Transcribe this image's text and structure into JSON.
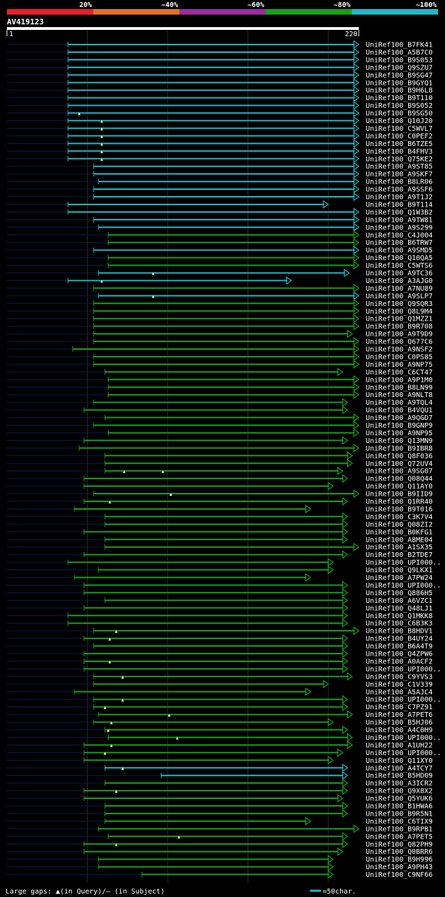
{
  "chart_data": {
    "type": "alignment-overview",
    "query": "AV419123",
    "query_start": "1",
    "query_end": "220",
    "query_length": 220,
    "identity_legend": [
      {
        "label": "20%",
        "color": "#e8202a"
      },
      {
        "label": "~40%",
        "color": "#e07020"
      },
      {
        "label": "~60%",
        "color": "#9c2ca0"
      },
      {
        "label": "~80%",
        "color": "#17a01c"
      },
      {
        "label": "~100%",
        "color": "#1fb8c8"
      }
    ],
    "footer": {
      "gaps_label": "Large gaps: ▲(in Query)/— (in Subject)",
      "scale_label": "=50char."
    },
    "hits": [
      {
        "name": "UniRef100_B7FK41",
        "start": 39,
        "end": 220,
        "color": "#1fb8c8",
        "arrow": true
      },
      {
        "name": "UniRef100_A5B7C0",
        "start": 39,
        "end": 220,
        "color": "#1fb8c8",
        "arrow": true
      },
      {
        "name": "UniRef100_B9S053",
        "start": 39,
        "end": 220,
        "color": "#1fb8c8",
        "arrow": true
      },
      {
        "name": "UniRef100_Q9SZU7",
        "start": 39,
        "end": 220,
        "color": "#1fb8c8",
        "arrow": true
      },
      {
        "name": "UniRef100_B9SG47",
        "start": 39,
        "end": 220,
        "color": "#1fb8c8",
        "arrow": true
      },
      {
        "name": "UniRef100_B9GYQ1",
        "start": 39,
        "end": 220,
        "color": "#1fb8c8",
        "arrow": true
      },
      {
        "name": "UniRef100_B9H6L8",
        "start": 39,
        "end": 220,
        "color": "#1fb8c8",
        "arrow": true
      },
      {
        "name": "UniRef100_B9T110",
        "start": 39,
        "end": 220,
        "color": "#1fb8c8",
        "arrow": true
      },
      {
        "name": "UniRef100_B9S052",
        "start": 39,
        "end": 220,
        "color": "#1fb8c8",
        "arrow": true
      },
      {
        "name": "UniRef100_B9SG50",
        "start": 39,
        "end": 220,
        "color": "#1fb8c8",
        "arrow": true,
        "gap": 46
      },
      {
        "name": "UniRef100_Q10J20",
        "start": 39,
        "end": 220,
        "color": "#1fb8c8",
        "arrow": true,
        "gap": 60
      },
      {
        "name": "UniRef100_C5WVL7",
        "start": 39,
        "end": 220,
        "color": "#1fb8c8",
        "arrow": true,
        "gap": 60
      },
      {
        "name": "UniRef100_C0PEF2",
        "start": 39,
        "end": 220,
        "color": "#1fb8c8",
        "arrow": true,
        "gap": 60
      },
      {
        "name": "UniRef100_B6TZE5",
        "start": 39,
        "end": 220,
        "color": "#1fb8c8",
        "arrow": true,
        "gap": 60
      },
      {
        "name": "UniRef100_B4FHV3",
        "start": 39,
        "end": 220,
        "color": "#1fb8c8",
        "arrow": true,
        "gap": 60
      },
      {
        "name": "UniRef100_Q75KE2",
        "start": 39,
        "end": 220,
        "color": "#1fb8c8",
        "arrow": true,
        "gap": 60
      },
      {
        "name": "UniRef100_A9ST85",
        "start": 55,
        "end": 220,
        "color": "#1fb8c8",
        "arrow": true
      },
      {
        "name": "UniRef100_A9SKF7",
        "start": 55,
        "end": 220,
        "color": "#1fb8c8",
        "arrow": true
      },
      {
        "name": "UniRef100_B8LR06",
        "start": 58,
        "end": 220,
        "color": "#1fb8c8",
        "arrow": true
      },
      {
        "name": "UniRef100_A9SSF6",
        "start": 55,
        "end": 220,
        "color": "#1fb8c8",
        "arrow": true
      },
      {
        "name": "UniRef100_A9T1J2",
        "start": 55,
        "end": 220,
        "color": "#1fb8c8",
        "arrow": true
      },
      {
        "name": "UniRef100_B9T114",
        "start": 39,
        "end": 201,
        "color": "#1fb8c8",
        "arrow": true
      },
      {
        "name": "UniRef100_Q1W3B2",
        "start": 39,
        "end": 220,
        "color": "#1fb8c8",
        "arrow": true
      },
      {
        "name": "UniRef100_A9TW81",
        "start": 55,
        "end": 220,
        "color": "#1fb8c8",
        "arrow": true
      },
      {
        "name": "UniRef100_A9S299",
        "start": 58,
        "end": 220,
        "color": "#1fb8c8",
        "arrow": true
      },
      {
        "name": "UniRef100_C4J004",
        "start": 64,
        "end": 220,
        "color": "#17a01c",
        "arrow": true
      },
      {
        "name": "UniRef100_B6TRW7",
        "start": 64,
        "end": 220,
        "color": "#17a01c",
        "arrow": true
      },
      {
        "name": "UniRef100_A9SMD5",
        "start": 55,
        "end": 220,
        "color": "#1fb8c8",
        "arrow": true
      },
      {
        "name": "UniRef100_Q10QA5",
        "start": 64,
        "end": 220,
        "color": "#17a01c",
        "arrow": true
      },
      {
        "name": "UniRef100_C5WTS6",
        "start": 64,
        "end": 220,
        "color": "#17a01c",
        "arrow": true
      },
      {
        "name": "UniRef100_A9TC36",
        "start": 58,
        "end": 214,
        "color": "#1fb8c8",
        "arrow": true,
        "gap": 92
      },
      {
        "name": "UniRef100_A3AJG0",
        "start": 39,
        "end": 178,
        "color": "#1fb8c8",
        "arrow": true,
        "gap": 60
      },
      {
        "name": "UniRef100_A7NU89",
        "start": 55,
        "end": 220,
        "color": "#17a01c",
        "arrow": true
      },
      {
        "name": "UniRef100_A9SLP7",
        "start": 58,
        "end": 220,
        "color": "#1fb8c8",
        "arrow": true,
        "gap": 92
      },
      {
        "name": "UniRef100_Q9SQR3",
        "start": 55,
        "end": 220,
        "color": "#17a01c",
        "arrow": true
      },
      {
        "name": "UniRef100_Q8L9M4",
        "start": 55,
        "end": 220,
        "color": "#17a01c",
        "arrow": true
      },
      {
        "name": "UniRef100_Q1MZZ1",
        "start": 55,
        "end": 220,
        "color": "#17a01c",
        "arrow": true
      },
      {
        "name": "UniRef100_B9R708",
        "start": 55,
        "end": 220,
        "color": "#17a01c",
        "arrow": true
      },
      {
        "name": "UniRef100_A9T9D9",
        "start": 55,
        "end": 216,
        "color": "#17a01c",
        "arrow": true
      },
      {
        "name": "UniRef100_Q677C6",
        "start": 55,
        "end": 220,
        "color": "#17a01c",
        "arrow": true
      },
      {
        "name": "UniRef100_A9NSF2",
        "start": 42,
        "end": 220,
        "color": "#17a01c",
        "arrow": true
      },
      {
        "name": "UniRef100_C0PS85",
        "start": 55,
        "end": 220,
        "color": "#17a01c",
        "arrow": true
      },
      {
        "name": "UniRef100_A9NP75",
        "start": 55,
        "end": 220,
        "color": "#17a01c",
        "arrow": true
      },
      {
        "name": "UniRef100_C6CT47",
        "start": 62,
        "end": 210,
        "color": "#17a01c",
        "arrow": true
      },
      {
        "name": "UniRef100_A9P1M0",
        "start": 64,
        "end": 220,
        "color": "#17a01c",
        "arrow": true
      },
      {
        "name": "UniRef100_B8LN99",
        "start": 64,
        "end": 220,
        "color": "#17a01c",
        "arrow": true
      },
      {
        "name": "UniRef100_A9NLT8",
        "start": 64,
        "end": 220,
        "color": "#17a01c",
        "arrow": true
      },
      {
        "name": "UniRef100_A9TQL4",
        "start": 55,
        "end": 213,
        "color": "#17a01c",
        "arrow": true
      },
      {
        "name": "UniRef100_B4VQU1",
        "start": 49,
        "end": 213,
        "color": "#17a01c",
        "arrow": true
      },
      {
        "name": "UniRef100_A9QGD7",
        "start": 62,
        "end": 220,
        "color": "#17a01c",
        "arrow": true
      },
      {
        "name": "UniRef100_B9GNP9",
        "start": 55,
        "end": 220,
        "color": "#17a01c",
        "arrow": true
      },
      {
        "name": "UniRef100_A9NP95",
        "start": 64,
        "end": 220,
        "color": "#17a01c",
        "arrow": true
      },
      {
        "name": "UniRef100_Q13MN9",
        "start": 49,
        "end": 213,
        "color": "#17a01c",
        "arrow": true
      },
      {
        "name": "UniRef100_B9IBR8",
        "start": 46,
        "end": 220,
        "color": "#17a01c",
        "arrow": true
      },
      {
        "name": "UniRef100_Q8F036",
        "start": 62,
        "end": 216,
        "color": "#17a01c",
        "arrow": true
      },
      {
        "name": "UniRef100_Q72UV4",
        "start": 62,
        "end": 216,
        "color": "#17a01c",
        "arrow": true
      },
      {
        "name": "UniRef100_A9SG07",
        "start": 62,
        "end": 210,
        "color": "#17a01c",
        "arrow": true,
        "gap": 74,
        "gap2": 98
      },
      {
        "name": "UniRef100_Q08Q44",
        "start": 49,
        "end": 213,
        "color": "#17a01c",
        "arrow": true
      },
      {
        "name": "UniRef100_Q11AY0",
        "start": 49,
        "end": 204,
        "color": "#17a01c",
        "arrow": true
      },
      {
        "name": "UniRef100_B9IID9",
        "start": 55,
        "end": 220,
        "color": "#17a01c",
        "arrow": true,
        "gap": 103
      },
      {
        "name": "UniRef100_Q1RR40",
        "start": 49,
        "end": 213,
        "color": "#17a01c",
        "arrow": true,
        "gap": 65
      },
      {
        "name": "UniRef100_B9T016",
        "start": 43,
        "end": 190,
        "color": "#17a01c",
        "arrow": true
      },
      {
        "name": "UniRef100_C3K7V4",
        "start": 62,
        "end": 213,
        "color": "#17a01c",
        "arrow": true
      },
      {
        "name": "UniRef100_Q08ZI2",
        "start": 62,
        "end": 213,
        "color": "#17a01c",
        "arrow": true
      },
      {
        "name": "UniRef100_B0KFG1",
        "start": 49,
        "end": 213,
        "color": "#17a01c",
        "arrow": true
      },
      {
        "name": "UniRef100_A8ME04",
        "start": 62,
        "end": 213,
        "color": "#17a01c",
        "arrow": true
      },
      {
        "name": "UniRef100_A1SX35",
        "start": 62,
        "end": 220,
        "color": "#17a01c",
        "arrow": true
      },
      {
        "name": "UniRef100_B2TDE7",
        "start": 49,
        "end": 213,
        "color": "#17a01c",
        "arrow": true
      },
      {
        "name": "UniRef100_UPI000..",
        "start": 39,
        "end": 204,
        "color": "#17a01c",
        "arrow": true
      },
      {
        "name": "UniRef100_Q9LKX1",
        "start": 58,
        "end": 204,
        "color": "#17a01c",
        "arrow": true
      },
      {
        "name": "UniRef100_A7PW24",
        "start": 43,
        "end": 190,
        "color": "#17a01c",
        "arrow": true
      },
      {
        "name": "UniRef100_UPI000..",
        "start": 49,
        "end": 213,
        "color": "#17a01c",
        "arrow": true
      },
      {
        "name": "UniRef100_Q886H5",
        "start": 49,
        "end": 213,
        "color": "#17a01c",
        "arrow": true
      },
      {
        "name": "UniRef100_A6VZC1",
        "start": 62,
        "end": 213,
        "color": "#17a01c",
        "arrow": true
      },
      {
        "name": "UniRef100_Q48LJ1",
        "start": 49,
        "end": 213,
        "color": "#17a01c",
        "arrow": true
      },
      {
        "name": "UniRef100_Q1MKK8",
        "start": 39,
        "end": 213,
        "color": "#17a01c",
        "arrow": true
      },
      {
        "name": "UniRef100_C6B3K3",
        "start": 39,
        "end": 213,
        "color": "#17a01c",
        "arrow": true
      },
      {
        "name": "UniRef100_B8HDV1",
        "start": 55,
        "end": 220,
        "color": "#17a01c",
        "arrow": true,
        "gap": 69
      },
      {
        "name": "UniRef100_B4UY24",
        "start": 49,
        "end": 213,
        "color": "#17a01c",
        "arrow": true,
        "gap": 65
      },
      {
        "name": "UniRef100_B6A4T9",
        "start": 55,
        "end": 213,
        "color": "#17a01c",
        "arrow": true
      },
      {
        "name": "UniRef100_Q4ZPW6",
        "start": 49,
        "end": 213,
        "color": "#17a01c",
        "arrow": true
      },
      {
        "name": "UniRef100_A0ACF2",
        "start": 49,
        "end": 213,
        "color": "#17a01c",
        "arrow": true,
        "gap": 65
      },
      {
        "name": "UniRef100_UPI000..",
        "start": 49,
        "end": 213,
        "color": "#17a01c",
        "arrow": true
      },
      {
        "name": "UniRef100_C9YVS3",
        "start": 55,
        "end": 216,
        "color": "#17a01c",
        "arrow": true,
        "gap": 73
      },
      {
        "name": "UniRef100_C1V339",
        "start": 55,
        "end": 201,
        "color": "#17a01c",
        "arrow": true
      },
      {
        "name": "UniRef100_A5AJC4",
        "start": 43,
        "end": 190,
        "color": "#17a01c",
        "arrow": true
      },
      {
        "name": "UniRef100_UPI000..",
        "start": 55,
        "end": 213,
        "color": "#17a01c",
        "arrow": true,
        "gap": 73
      },
      {
        "name": "UniRef100_C7PZ91",
        "start": 55,
        "end": 213,
        "color": "#17a01c",
        "arrow": true,
        "gap": 62
      },
      {
        "name": "UniRef100_A7PET6",
        "start": 58,
        "end": 216,
        "color": "#17a01c",
        "arrow": true,
        "gap": 102
      },
      {
        "name": "UniRef100_B5HJ06",
        "start": 55,
        "end": 204,
        "color": "#17a01c",
        "arrow": true,
        "gap": 66
      },
      {
        "name": "UniRef100_A4C0H9",
        "start": 62,
        "end": 213,
        "color": "#17a01c",
        "arrow": true,
        "gap": 64
      },
      {
        "name": "UniRef100_UPI000..",
        "start": 64,
        "end": 216,
        "color": "#17a01c",
        "arrow": true,
        "gap": 107
      },
      {
        "name": "UniRef100_A1UH22",
        "start": 49,
        "end": 216,
        "color": "#17a01c",
        "arrow": true,
        "gap": 66
      },
      {
        "name": "UniRef100_UPI000..",
        "start": 49,
        "end": 210,
        "color": "#17a01c",
        "arrow": true,
        "gap": 62
      },
      {
        "name": "UniRef100_Q11XY0",
        "start": 49,
        "end": 204,
        "color": "#17a01c",
        "arrow": true
      },
      {
        "name": "UniRef100_A4TCY7",
        "start": 62,
        "end": 213,
        "color": "#1fb8c8",
        "arrow": true,
        "gap": 73
      },
      {
        "name": "UniRef100_B5HD09",
        "start": 97,
        "end": 213,
        "color": "#1fb8c8",
        "arrow": true
      },
      {
        "name": "UniRef100_A3ICR2",
        "start": 62,
        "end": 213,
        "color": "#17a01c",
        "arrow": true
      },
      {
        "name": "UniRef100_Q9X8X2",
        "start": 49,
        "end": 213,
        "color": "#17a01c",
        "arrow": true,
        "gap": 69
      },
      {
        "name": "UniRef100_Q5YUK6",
        "start": 49,
        "end": 210,
        "color": "#17a01c",
        "arrow": true
      },
      {
        "name": "UniRef100_B1HWA6",
        "start": 62,
        "end": 213,
        "color": "#17a01c",
        "arrow": true
      },
      {
        "name": "UniRef100_B9R5N1",
        "start": 62,
        "end": 213,
        "color": "#17a01c",
        "arrow": true
      },
      {
        "name": "UniRef100_C6TIX9",
        "start": 62,
        "end": 190,
        "color": "#17a01c",
        "arrow": true
      },
      {
        "name": "UniRef100_B9RPB1",
        "start": 58,
        "end": 220,
        "color": "#17a01c",
        "arrow": true
      },
      {
        "name": "UniRef100_A7PET5",
        "start": 64,
        "end": 213,
        "color": "#17a01c",
        "arrow": true,
        "gap": 108
      },
      {
        "name": "UniRef100_Q82PH9",
        "start": 49,
        "end": 213,
        "color": "#17a01c",
        "arrow": true,
        "gap": 69
      },
      {
        "name": "UniRef100_Q0BRR6",
        "start": 49,
        "end": 210,
        "color": "#17a01c",
        "arrow": true
      },
      {
        "name": "UniRef100_B9H996",
        "start": 58,
        "end": 204,
        "color": "#17a01c",
        "arrow": true
      },
      {
        "name": "UniRef100_A9PH43",
        "start": 58,
        "end": 204,
        "color": "#17a01c",
        "arrow": true
      },
      {
        "name": "UniRef100_C9NF66",
        "start": 85,
        "end": 204,
        "color": "#17a01c",
        "arrow": true
      }
    ]
  }
}
